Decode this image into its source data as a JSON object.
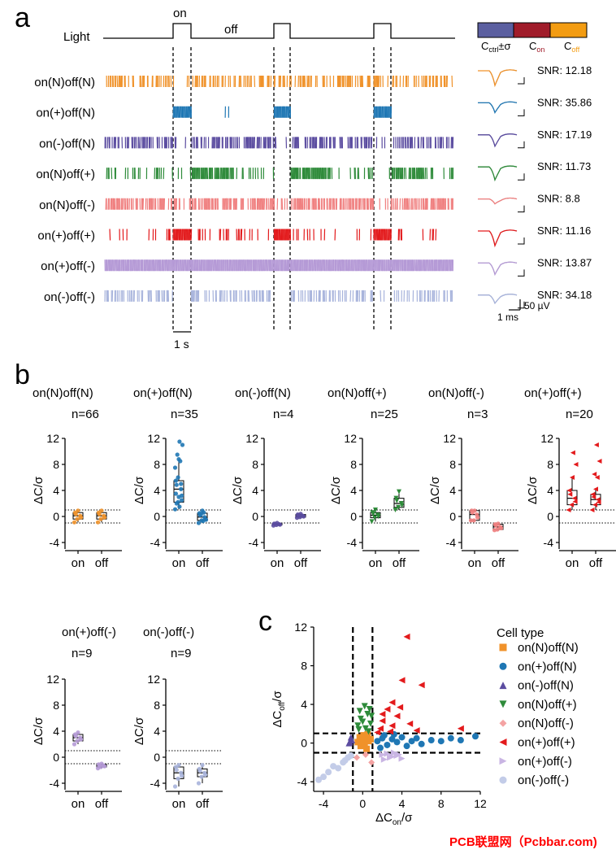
{
  "panels": {
    "a": "a",
    "b": "b",
    "c": "c"
  },
  "panel_a": {
    "light_label": "Light",
    "on_label": "on",
    "off_label": "off",
    "scale_time": "1 s",
    "rows": [
      {
        "name": "on(N)off(N)",
        "color": "#f0922a",
        "snr": "SNR: 12.18"
      },
      {
        "name": "on(+)off(N)",
        "color": "#1f77b4",
        "snr": "SNR: 35.86"
      },
      {
        "name": "on(-)off(N)",
        "color": "#5b4ca0",
        "snr": "SNR: 17.19"
      },
      {
        "name": "on(N)off(+)",
        "color": "#2e8b3a",
        "snr": "SNR: 11.73"
      },
      {
        "name": "on(N)off(-)",
        "color": "#f08080",
        "snr": "SNR: 8.8"
      },
      {
        "name": "on(+)off(+)",
        "color": "#e31a1c",
        "snr": "SNR: 11.16"
      },
      {
        "name": "on(+)off(-)",
        "color": "#b59ad6",
        "snr": "SNR: 13.87"
      },
      {
        "name": "on(-)off(-)",
        "color": "#a8b4dc",
        "snr": "SNR: 34.18"
      }
    ],
    "colorbar": {
      "colors": [
        "#5b5fa0",
        "#a01c2a",
        "#f39c12"
      ],
      "labels": [
        "C",
        "ctrl",
        "±σ",
        "C",
        "on",
        "C",
        "off"
      ]
    },
    "waveform_scale": {
      "time": "1 ms",
      "amp": "50 µV"
    }
  },
  "chart_data": [
    {
      "type": "box",
      "title": "on(N)off(N)",
      "n": "n=66",
      "ylabel": "ΔC/σ",
      "categories": [
        "on",
        "off"
      ],
      "ylim": [
        -5,
        12
      ],
      "yticks": [
        "12",
        "8",
        "4",
        "0",
        "-4"
      ],
      "color": "#f0922a",
      "boxes": [
        {
          "q1": -0.4,
          "median": 0.1,
          "q3": 0.6,
          "min": -0.9,
          "max": 0.9
        },
        {
          "q1": -0.4,
          "median": 0.1,
          "q3": 0.6,
          "min": -0.9,
          "max": 0.9
        }
      ],
      "grid": false
    },
    {
      "type": "box",
      "title": "on(+)off(N)",
      "n": "n=35",
      "ylabel": "ΔC/σ",
      "categories": [
        "on",
        "off"
      ],
      "ylim": [
        -5,
        12
      ],
      "yticks": [
        "12",
        "8",
        "4",
        "0",
        "-4"
      ],
      "color": "#1f77b4",
      "boxes": [
        {
          "q1": 2.2,
          "median": 4.2,
          "q3": 5.5,
          "min": 1.1,
          "max": 8.8
        },
        {
          "q1": -0.6,
          "median": -0.1,
          "q3": 0.5,
          "min": -1.0,
          "max": 0.9
        }
      ],
      "outliers": [
        [
          11.5,
          11.0,
          9.5,
          8.5,
          7.5,
          6.0,
          5.0,
          3.5,
          3.0,
          2.5,
          2.0,
          1.5
        ],
        [
          -0.7,
          -0.5,
          0.3,
          0.6
        ]
      ],
      "grid": false
    },
    {
      "type": "box",
      "title": "on(-)off(N)",
      "n": "n=4",
      "ylabel": "ΔC/σ",
      "categories": [
        "on",
        "off"
      ],
      "ylim": [
        -5,
        12
      ],
      "yticks": [
        "12",
        "8",
        "4",
        "0",
        "-4"
      ],
      "color": "#5b4ca0",
      "boxes": [
        {
          "q1": -1.3,
          "median": -1.2,
          "q3": -1.1,
          "min": -1.4,
          "max": -1.0
        },
        {
          "q1": -0.1,
          "median": 0.1,
          "q3": 0.3,
          "min": -0.2,
          "max": 0.4
        }
      ],
      "grid": false
    },
    {
      "type": "box",
      "title": "on(N)off(+)",
      "n": "n=25",
      "ylabel": "ΔC/σ",
      "categories": [
        "on",
        "off"
      ],
      "ylim": [
        -5,
        12
      ],
      "yticks": [
        "12",
        "8",
        "4",
        "0",
        "-4"
      ],
      "color": "#2e8b3a",
      "boxes": [
        {
          "q1": -0.2,
          "median": 0.2,
          "q3": 0.6,
          "min": -0.8,
          "max": 1.0
        },
        {
          "q1": 1.4,
          "median": 2.0,
          "q3": 2.8,
          "min": 1.0,
          "max": 3.8
        }
      ],
      "grid": false
    },
    {
      "type": "box",
      "title": "on(N)off(-)",
      "n": "n=3",
      "ylabel": "ΔC/σ",
      "categories": [
        "on",
        "off"
      ],
      "ylim": [
        -5,
        12
      ],
      "yticks": [
        "12",
        "8",
        "4",
        "0",
        "-4"
      ],
      "color": "#f08080",
      "boxes": [
        {
          "q1": -0.6,
          "median": 0.3,
          "q3": 0.9,
          "min": -0.6,
          "max": 0.9
        },
        {
          "q1": -2.0,
          "median": -1.6,
          "q3": -1.2,
          "min": -2.1,
          "max": -1.1
        }
      ],
      "grid": false
    },
    {
      "type": "box",
      "title": "on(+)off(+)",
      "n": "n=20",
      "ylabel": "ΔC/σ",
      "categories": [
        "on",
        "off"
      ],
      "ylim": [
        -5,
        12
      ],
      "yticks": [
        "12",
        "8",
        "4",
        "0",
        "-4"
      ],
      "color": "#e31a1c",
      "boxes": [
        {
          "q1": 1.8,
          "median": 2.8,
          "q3": 4.0,
          "min": 1.0,
          "max": 6.0
        },
        {
          "q1": 1.8,
          "median": 2.6,
          "q3": 3.4,
          "min": 1.0,
          "max": 4.2
        }
      ],
      "outliers": [
        [
          9.8,
          8.0
        ],
        [
          11.0,
          8.5,
          6.5,
          6.0
        ]
      ],
      "grid": false
    },
    {
      "type": "box",
      "title": "on(+)off(-)",
      "n": "n=9",
      "ylabel": "ΔC/σ",
      "categories": [
        "on",
        "off"
      ],
      "ylim": [
        -5,
        12
      ],
      "yticks": [
        "12",
        "8",
        "4",
        "0",
        "-4"
      ],
      "color": "#b59ad6",
      "boxes": [
        {
          "q1": 2.5,
          "median": 3.0,
          "q3": 3.5,
          "min": 2.0,
          "max": 3.8
        },
        {
          "q1": -1.5,
          "median": -1.3,
          "q3": -1.1,
          "min": -1.7,
          "max": -1.0
        }
      ],
      "grid": false
    },
    {
      "type": "box",
      "title": "on(-)off(-)",
      "n": "n=9",
      "ylabel": "ΔC/σ",
      "categories": [
        "on",
        "off"
      ],
      "ylim": [
        -5,
        12
      ],
      "yticks": [
        "12",
        "8",
        "4",
        "0",
        "-4"
      ],
      "color": "#a8b4dc",
      "boxes": [
        {
          "q1": -3.3,
          "median": -2.4,
          "q3": -1.5,
          "min": -4.5,
          "max": -1.2
        },
        {
          "q1": -3.0,
          "median": -2.4,
          "q3": -1.8,
          "min": -4.0,
          "max": -1.2
        }
      ],
      "grid": false
    },
    {
      "type": "scatter",
      "title": "",
      "xlabel": "ΔC",
      "xlabel_sub": "on",
      "xlabel_tail": "/σ",
      "ylabel": "ΔC",
      "ylabel_sub": "off",
      "ylabel_tail": "/σ",
      "xlim": [
        -5,
        12
      ],
      "ylim": [
        -5,
        12
      ],
      "xticks": [
        "-4",
        "0",
        "4",
        "8",
        "12"
      ],
      "yticks": [
        "12",
        "8",
        "4",
        "0",
        "-4"
      ],
      "legend_title": "Cell type",
      "legend_position": "right",
      "series": [
        {
          "name": "on(N)off(N)",
          "color": "#f0922a",
          "marker": "square",
          "points": [
            [
              0,
              0
            ],
            [
              0.3,
              0.5
            ],
            [
              -0.2,
              -0.3
            ],
            [
              0.6,
              0.2
            ],
            [
              0.1,
              0.8
            ],
            [
              -0.5,
              0.1
            ],
            [
              0.4,
              -0.6
            ],
            [
              0.8,
              0.4
            ],
            [
              -0.3,
              0.6
            ],
            [
              0.2,
              -0.2
            ],
            [
              0.5,
              0.9
            ],
            [
              -0.1,
              0.3
            ]
          ]
        },
        {
          "name": "on(+)off(N)",
          "color": "#1f77b4",
          "marker": "circle",
          "points": [
            [
              1.5,
              0.2
            ],
            [
              2,
              0.5
            ],
            [
              2.5,
              -0.2
            ],
            [
              3,
              0.4
            ],
            [
              3.5,
              0.1
            ],
            [
              4,
              0.6
            ],
            [
              4.5,
              -0.3
            ],
            [
              5,
              0.2
            ],
            [
              5.5,
              0.5
            ],
            [
              6,
              -0.1
            ],
            [
              7,
              0.3
            ],
            [
              8,
              0.2
            ],
            [
              9,
              0.5
            ],
            [
              10,
              0.3
            ],
            [
              11.5,
              0.7
            ],
            [
              3.2,
              0.9
            ],
            [
              2.2,
              0.8
            ],
            [
              1.8,
              -0.5
            ]
          ]
        },
        {
          "name": "on(-)off(N)",
          "color": "#5b4ca0",
          "marker": "triangle-up",
          "points": [
            [
              -1.2,
              0.6
            ],
            [
              -1.3,
              0.1
            ],
            [
              -1.1,
              0.3
            ],
            [
              -1.4,
              0.0
            ]
          ]
        },
        {
          "name": "on(N)off(+)",
          "color": "#2e8b3a",
          "marker": "triangle-down",
          "points": [
            [
              0.2,
              3.8
            ],
            [
              0.5,
              3.0
            ],
            [
              -0.2,
              2.5
            ],
            [
              0.8,
              2.0
            ],
            [
              0.3,
              1.5
            ],
            [
              -0.5,
              1.8
            ],
            [
              0.9,
              2.8
            ],
            [
              -0.3,
              3.3
            ],
            [
              0.6,
              1.2
            ],
            [
              0.0,
              2.2
            ],
            [
              -0.4,
              1.4
            ],
            [
              0.7,
              3.5
            ]
          ]
        },
        {
          "name": "on(N)off(-)",
          "color": "#f4a3a3",
          "marker": "diamond",
          "points": [
            [
              0.3,
              -1.2
            ],
            [
              0.9,
              -2.0
            ],
            [
              -0.6,
              -1.5
            ]
          ]
        },
        {
          "name": "on(+)off(+)",
          "color": "#e31a1c",
          "marker": "triangle-left",
          "points": [
            [
              4.5,
              11.0
            ],
            [
              4,
              6.5
            ],
            [
              6,
              6.0
            ],
            [
              3,
              4.2
            ],
            [
              2.5,
              3.5
            ],
            [
              3.5,
              2.8
            ],
            [
              2,
              2.3
            ],
            [
              4.8,
              2.0
            ],
            [
              1.8,
              1.5
            ],
            [
              3,
              1.8
            ],
            [
              2.8,
              1.2
            ],
            [
              1.5,
              1.1
            ],
            [
              5.5,
              1.3
            ],
            [
              10,
              1.5
            ],
            [
              2,
              3.0
            ],
            [
              3.8,
              3.7
            ]
          ]
        },
        {
          "name": "on(+)off(-)",
          "color": "#c9b5e3",
          "marker": "triangle-right",
          "points": [
            [
              2.5,
              -1.1
            ],
            [
              3,
              -1.4
            ],
            [
              3.5,
              -1.3
            ],
            [
              2.8,
              -1.5
            ],
            [
              2,
              -1.2
            ],
            [
              4,
              -1.6
            ],
            [
              3.2,
              -1.0
            ],
            [
              2.2,
              -1.7
            ],
            [
              3.7,
              -1.2
            ]
          ]
        },
        {
          "name": "on(-)off(-)",
          "color": "#c3cce8",
          "marker": "circle",
          "points": [
            [
              -4.5,
              -3.8
            ],
            [
              -3.5,
              -3.0
            ],
            [
              -3,
              -2.4
            ],
            [
              -2,
              -2.0
            ],
            [
              -1.5,
              -1.5
            ],
            [
              -2.5,
              -2.6
            ],
            [
              -1.2,
              -1.3
            ],
            [
              -4,
              -3.5
            ],
            [
              -1.8,
              -1.8
            ]
          ]
        }
      ],
      "grid": false
    }
  ],
  "watermark": "PCB联盟网（Pcbbar.com)"
}
